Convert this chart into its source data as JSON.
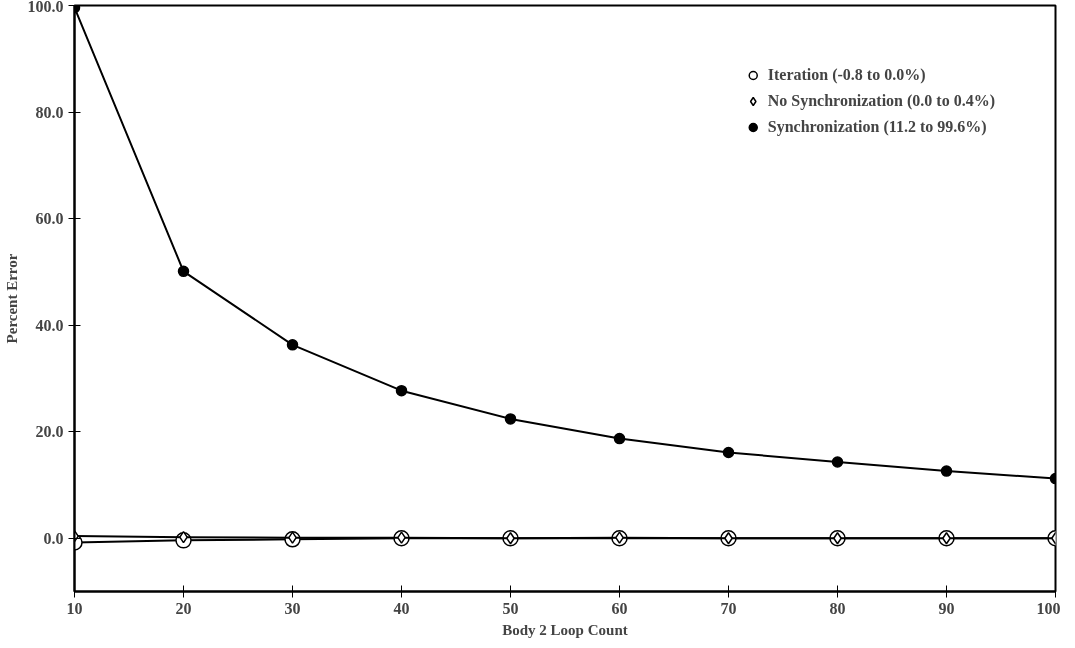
{
  "chart_data": {
    "type": "line",
    "xlabel": "Body 2 Loop Count",
    "ylabel": "Percent Error",
    "x": [
      10,
      20,
      30,
      40,
      50,
      60,
      70,
      80,
      90,
      100
    ],
    "series": [
      {
        "name": "Iteration (-0.8 to 0.0%)",
        "color": "#000000",
        "marker": "circle_open",
        "values": [
          -0.8,
          -0.4,
          -0.2,
          0.0,
          0.0,
          0.0,
          0.0,
          0.0,
          0.0,
          0.0
        ]
      },
      {
        "name": "No Synchronization (0.0 to 0.4%)",
        "color": "#000000",
        "marker": "diamond_open",
        "values": [
          0.4,
          0.2,
          0.1,
          0.1,
          0.0,
          0.1,
          0.0,
          0.0,
          0.0,
          0.0
        ]
      },
      {
        "name": "Synchronization (11.2 to 99.6%)",
        "color": "#000000",
        "marker": "circle",
        "values": [
          99.6,
          50.1,
          36.3,
          27.7,
          22.4,
          18.7,
          16.1,
          14.3,
          12.6,
          11.2
        ]
      }
    ],
    "xlim": [
      10,
      100
    ],
    "ylim": [
      -10,
      100
    ],
    "xticks": [
      10,
      20,
      30,
      40,
      50,
      60,
      70,
      80,
      90,
      100
    ],
    "yticks": [
      {
        "value": 0,
        "label": "0.0"
      },
      {
        "value": 20,
        "label": "20.0"
      },
      {
        "value": 40,
        "label": "40.0"
      },
      {
        "value": 60,
        "label": "60.0"
      },
      {
        "value": 80,
        "label": "80.0"
      },
      {
        "value": 100,
        "label": "100.0"
      }
    ],
    "grid": false,
    "legend": "top right",
    "line_style": "solid"
  }
}
